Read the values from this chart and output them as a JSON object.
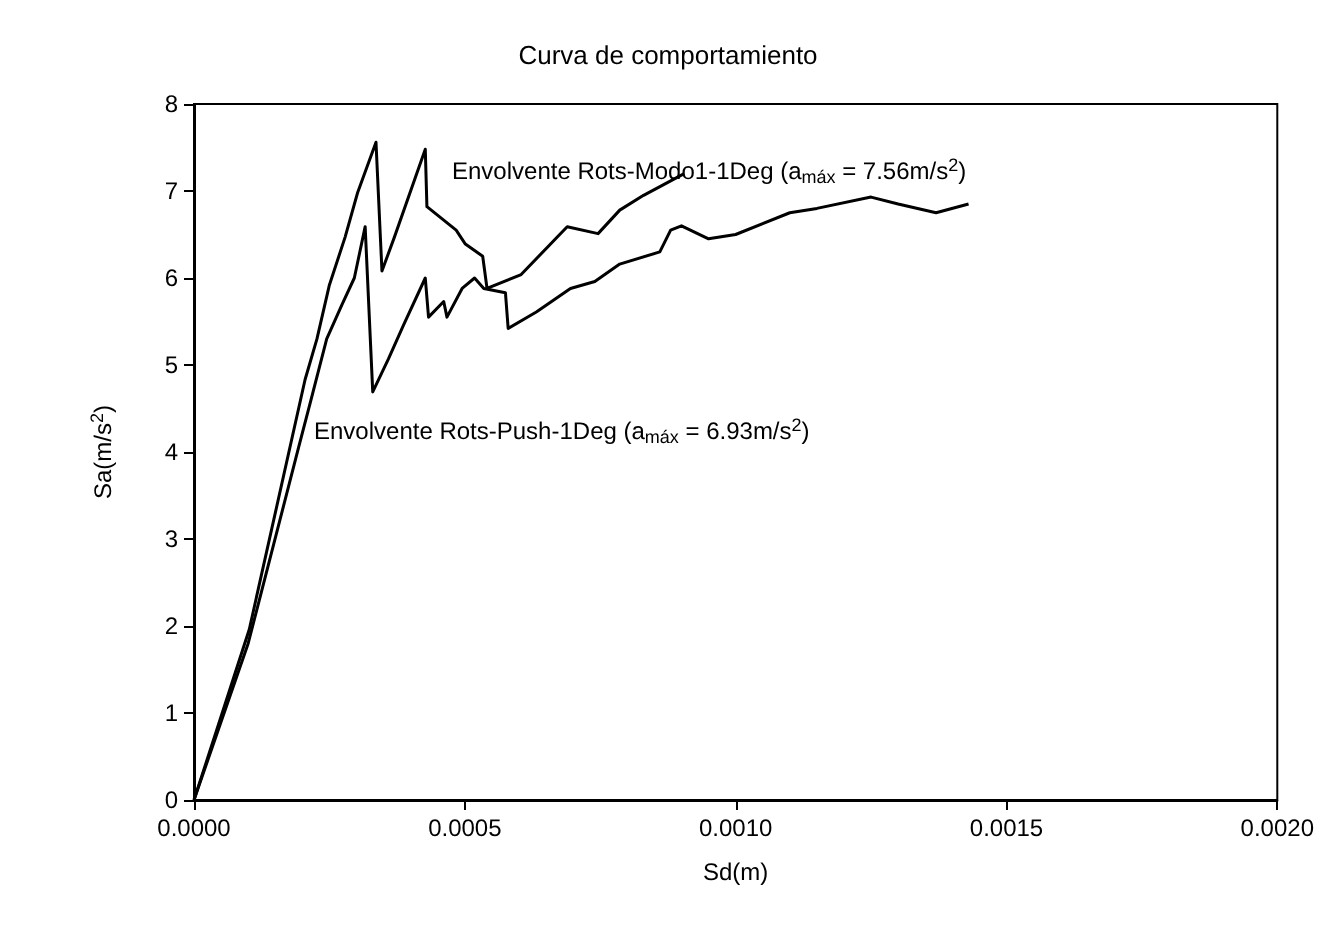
{
  "chart_data": {
    "type": "line",
    "title": "Curva de comportamiento",
    "xlabel": "Sd(m)",
    "ylabel": "Sa(m/s$^{2}$)",
    "xlim": [
      0,
      0.002
    ],
    "xticks": [
      {
        "value": 0,
        "label": "0.0000"
      },
      {
        "value": 0.0005,
        "label": "0.0005"
      },
      {
        "value": 0.001,
        "label": "0.0010"
      },
      {
        "value": 0.0015,
        "label": "0.0015"
      },
      {
        "value": 0.002,
        "label": "0.0020"
      }
    ],
    "ylim": [
      0,
      8
    ],
    "yticks": [
      0,
      1,
      2,
      3,
      4,
      5,
      6,
      7,
      8
    ],
    "grid": false,
    "marker": "none",
    "line_style": "solid",
    "series": [
      {
        "color": "#000000",
        "x": [
          0,
          0.000102,
          0.000205,
          0.000227,
          0.00025,
          0.000279,
          0.000302,
          0.000336,
          0.000347,
          0.00037,
          0.000427,
          0.00043,
          0.000484,
          0.000501,
          0.000533,
          0.000541,
          0.000604,
          0.000689,
          0.000746,
          0.000786,
          0.00083,
          0.000905
        ],
        "values": [
          0,
          1.96,
          4.83,
          5.3,
          5.92,
          6.47,
          6.98,
          7.56,
          6.08,
          6.47,
          7.48,
          6.82,
          6.55,
          6.39,
          6.25,
          5.88,
          6.04,
          6.59,
          6.51,
          6.78,
          6.95,
          7.2
        ]
      },
      {
        "color": "#000000",
        "x": [
          0,
          0.0001,
          0.000193,
          0.000216,
          0.000245,
          0.000273,
          0.000296,
          0.000316,
          0.00033,
          0.000359,
          0.000387,
          0.000427,
          0.000433,
          0.000461,
          0.000467,
          0.000495,
          0.000518,
          0.000535,
          0.000575,
          0.00058,
          0.000632,
          0.000695,
          0.00074,
          0.000786,
          0.00086,
          0.00088,
          0.0009,
          0.00095,
          0.001,
          0.0011,
          0.00115,
          0.00125,
          0.0013,
          0.00137,
          0.00143
        ],
        "values": [
          0,
          1.8,
          4.05,
          4.6,
          5.3,
          5.69,
          6.0,
          6.59,
          4.69,
          5.07,
          5.46,
          6.0,
          5.55,
          5.73,
          5.55,
          5.88,
          6.0,
          5.88,
          5.83,
          5.42,
          5.61,
          5.88,
          5.96,
          6.16,
          6.3,
          6.55,
          6.6,
          6.45,
          6.5,
          6.75,
          6.8,
          6.93,
          6.85,
          6.75,
          6.85
        ]
      }
    ],
    "annotations": [
      "Envolvente Rots-Modo1-1Deg (a$_{máx}$ = 7.56m/s$^{2}$)",
      "Envolvente Rots-Push-1Deg (a$_{máx}$ = 6.93m/s$^{2}$)"
    ]
  }
}
